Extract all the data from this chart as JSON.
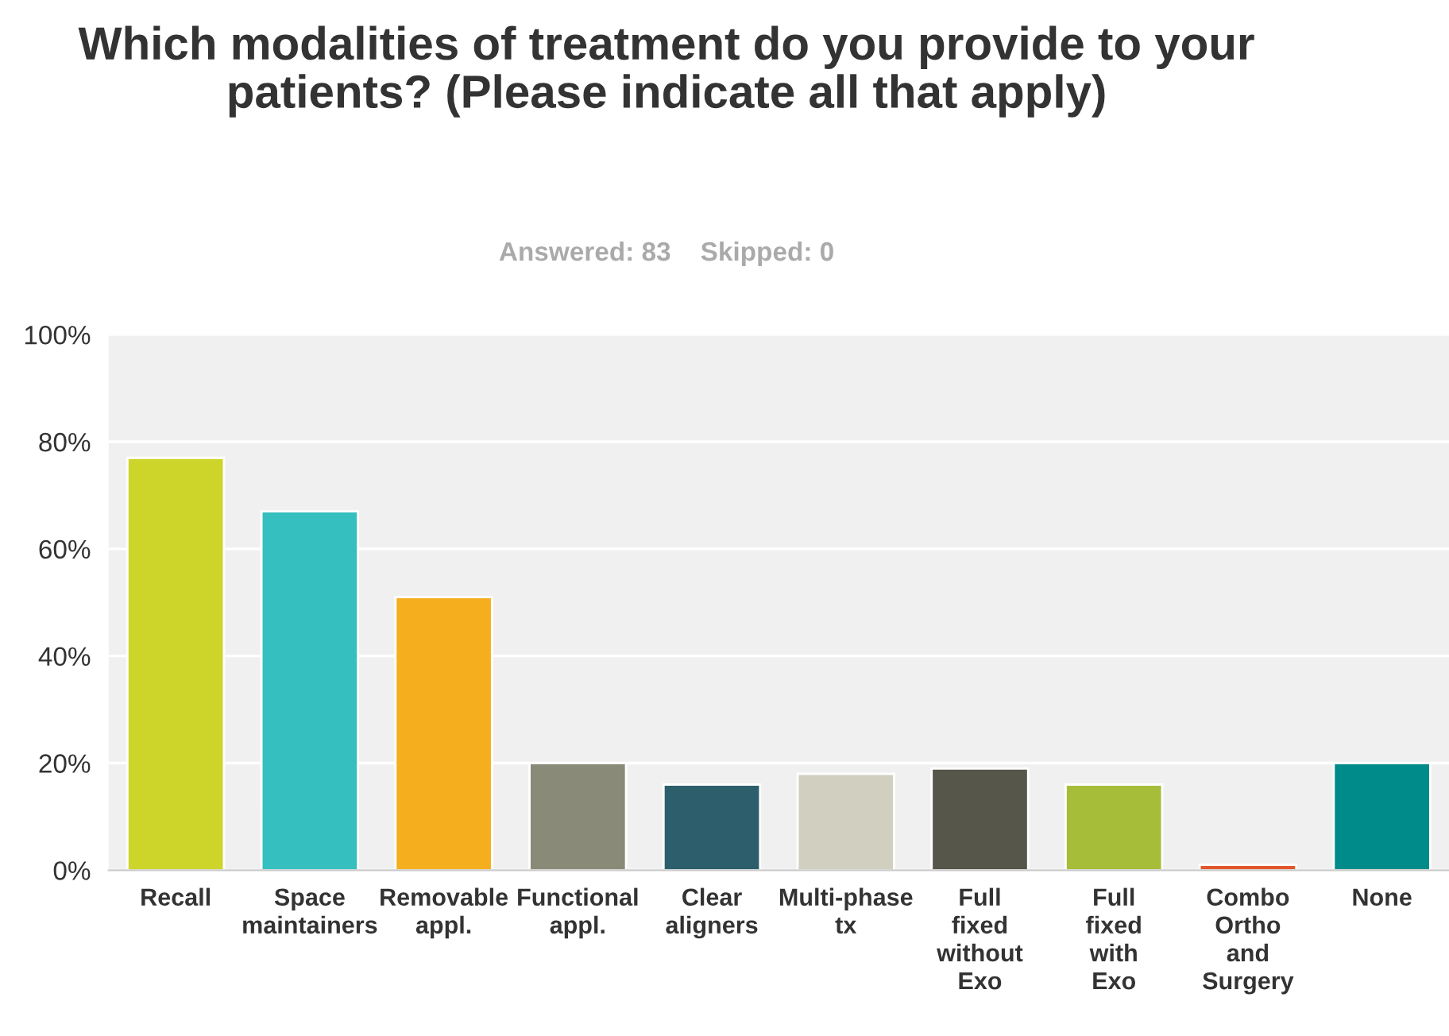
{
  "chart_data": {
    "type": "bar",
    "title": "Which modalities of treatment do you provide to your patients? (Please indicate all that apply)",
    "subtitle": "Answered: 83    Skipped: 0",
    "categories": [
      "Recall",
      "Space\nmaintainers",
      "Removable\nappl.",
      "Functional\nappl.",
      "Clear\naligners",
      "Multi-phase\ntx",
      "Full\nfixed\nwithout\nExo",
      "Full\nfixed\nwith\nExo",
      "Combo\nOrtho\nand\nSurgery",
      "None"
    ],
    "values": [
      77,
      67,
      51,
      20,
      16,
      18,
      19,
      16,
      1,
      20
    ],
    "colors": [
      "#cdd42a",
      "#35bfbf",
      "#f5ae1e",
      "#8a8a78",
      "#2c5f6b",
      "#d1cfbf",
      "#57564a",
      "#a6bd3a",
      "#e0572a",
      "#008b8b"
    ],
    "ylim": [
      0,
      100
    ],
    "yticks": [
      {
        "value": 0,
        "label": "0%"
      },
      {
        "value": 20,
        "label": "20%"
      },
      {
        "value": 40,
        "label": "40%"
      },
      {
        "value": 60,
        "label": "60%"
      },
      {
        "value": 80,
        "label": "80%"
      },
      {
        "value": 100,
        "label": "100%"
      }
    ],
    "grid": "y"
  }
}
